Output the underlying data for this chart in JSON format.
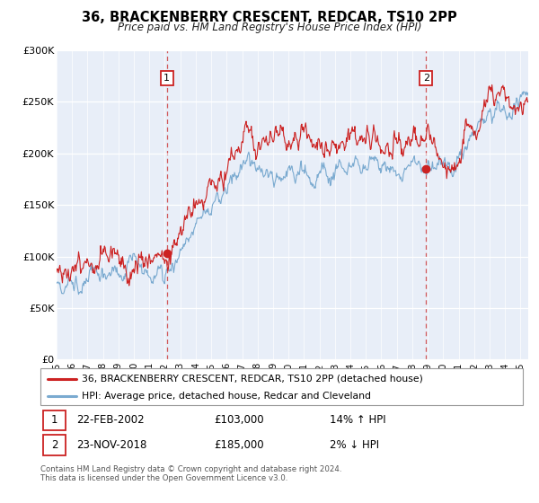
{
  "title": "36, BRACKENBERRY CRESCENT, REDCAR, TS10 2PP",
  "subtitle": "Price paid vs. HM Land Registry's House Price Index (HPI)",
  "hpi_label": "HPI: Average price, detached house, Redcar and Cleveland",
  "property_label": "36, BRACKENBERRY CRESCENT, REDCAR, TS10 2PP (detached house)",
  "sale1_date": "22-FEB-2002",
  "sale1_price": 103000,
  "sale1_hpi": "14% ↑ HPI",
  "sale2_date": "23-NOV-2018",
  "sale2_price": 185000,
  "sale2_hpi": "2% ↓ HPI",
  "footnote": "Contains HM Land Registry data © Crown copyright and database right 2024.\nThis data is licensed under the Open Government Licence v3.0.",
  "xmin": 1995.0,
  "xmax": 2025.5,
  "ymin": 0,
  "ymax": 300000,
  "property_color": "#cc2222",
  "hpi_color": "#7aaad0",
  "background_color": "#e8eef8",
  "sale1_x": 2002.13,
  "sale2_x": 2018.9
}
